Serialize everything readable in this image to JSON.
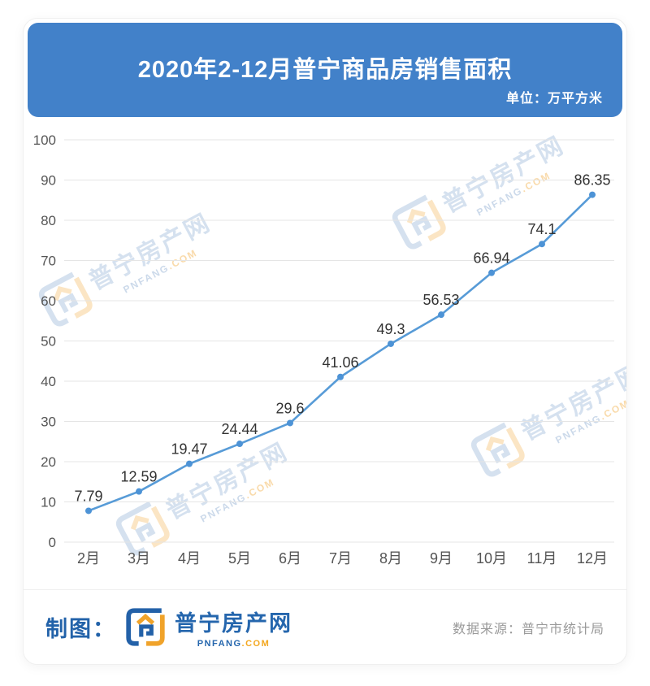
{
  "header": {
    "title": "2020年2-12月普宁商品房销售面积",
    "unit_label": "单位：万平方米",
    "bg_color": "#4281c9"
  },
  "chart_data": {
    "type": "line",
    "title": "2020年2-12月普宁商品房销售面积",
    "unit": "万平方米",
    "categories": [
      "2月",
      "3月",
      "4月",
      "5月",
      "6月",
      "7月",
      "8月",
      "9月",
      "10月",
      "11月",
      "12月"
    ],
    "values": [
      7.79,
      12.59,
      19.47,
      24.44,
      29.6,
      41.06,
      49.3,
      56.53,
      66.94,
      74.1,
      86.35
    ],
    "ylim": [
      0,
      100
    ],
    "yticks": [
      0,
      10,
      20,
      30,
      40,
      50,
      60,
      70,
      80,
      90,
      100
    ],
    "grid": true,
    "legend": "none",
    "line_color": "#579bd7",
    "marker_color": "#4d93d6",
    "label_color": "#333333",
    "axis_color": "#555555",
    "grid_color": "#e5e5e5"
  },
  "brand": {
    "name": "普宁房产网",
    "domain_prefix": "PNFANG",
    "domain_suffix": ".COM"
  },
  "footer": {
    "credit_label": "制图：",
    "source": "数据来源：普宁市统计局"
  }
}
